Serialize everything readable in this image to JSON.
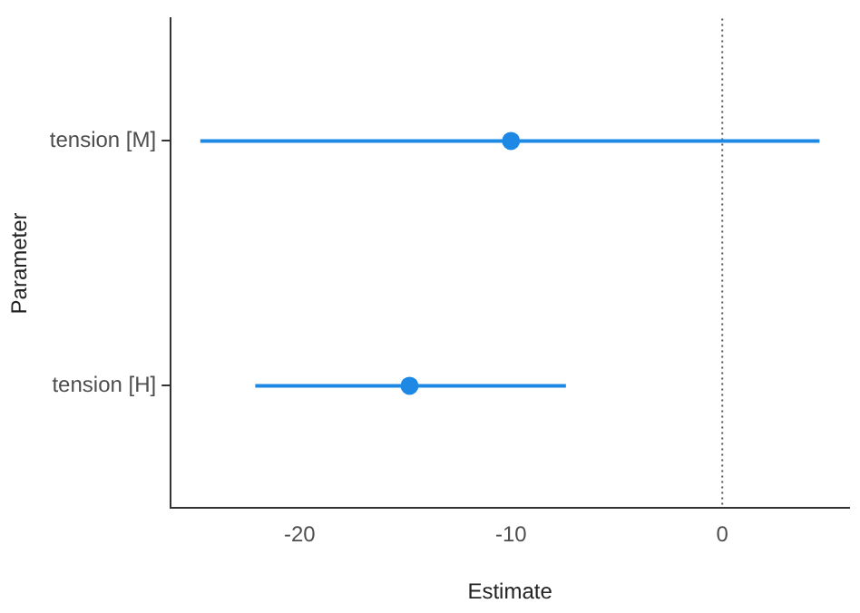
{
  "chart_data": {
    "type": "scatter",
    "orientation": "horizontal",
    "xlabel": "Estimate",
    "ylabel": "Parameter",
    "categories": [
      "tension [M]",
      "tension [H]"
    ],
    "values": [
      -10.0,
      -14.8
    ],
    "errors": [
      [
        -24.7,
        4.6
      ],
      [
        -22.1,
        -7.4
      ]
    ],
    "color": "#1e88e5",
    "xlim": [
      -26.1,
      6.0
    ],
    "xticks": [
      -20,
      -10,
      0
    ],
    "ref_lines": [
      {
        "axis": "x",
        "value": 0,
        "color": "#555555",
        "line_style": "dotted"
      }
    ],
    "grid": false,
    "legend": false,
    "marker": "circle"
  }
}
